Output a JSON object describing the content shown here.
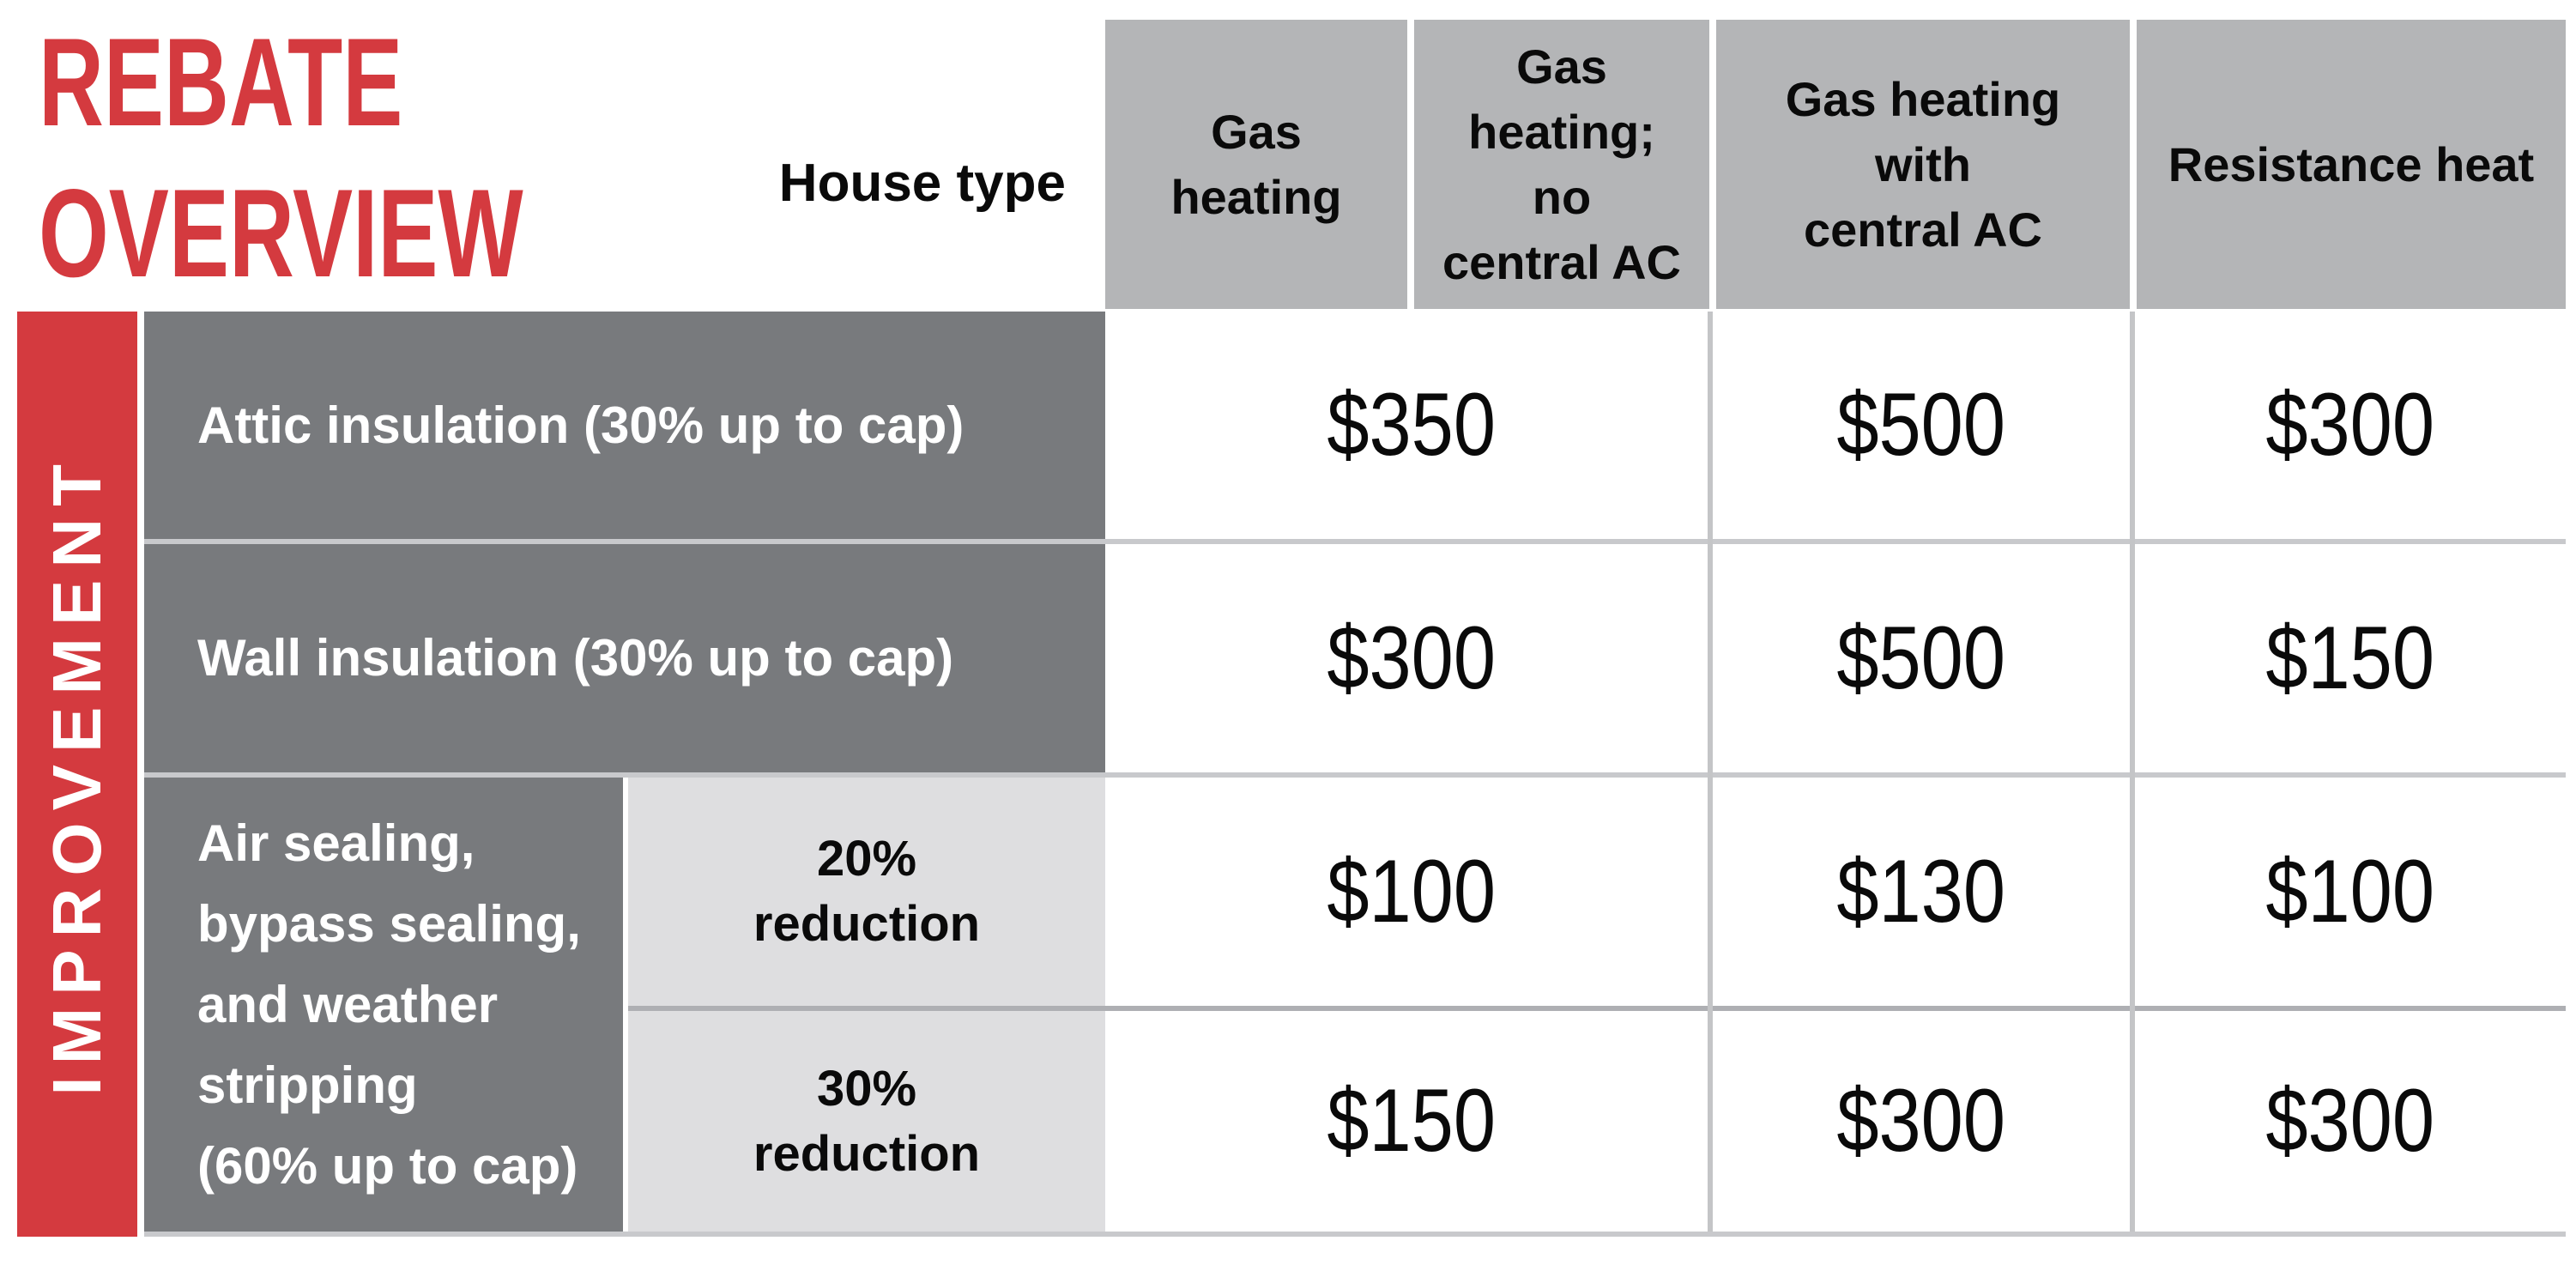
{
  "title": {
    "line1": "REBATE",
    "line2": "OVERVIEW"
  },
  "header": {
    "house_type": "House type",
    "columns": [
      {
        "label": "Gas\nheating"
      },
      {
        "label": "Gas\nheating;\nno\ncentral AC"
      },
      {
        "label": "Gas heating\nwith\ncentral AC"
      },
      {
        "label": "Resistance heat"
      }
    ]
  },
  "sidebar": {
    "label": "IMPROVEMENT"
  },
  "rows": [
    {
      "label": "Attic insulation (30% up to cap)",
      "values": [
        "$350",
        "$500",
        "$300"
      ]
    },
    {
      "label": "Wall insulation (30% up to cap)",
      "values": [
        "$300",
        "$500",
        "$150"
      ]
    },
    {
      "label": "Air sealing,\nbypass sealing,\nand weather\nstripping\n(60% up to cap)",
      "sub_rows": [
        {
          "label": "20%\nreduction",
          "values": [
            "$100",
            "$130",
            "$100"
          ]
        },
        {
          "label": "30%\nreduction",
          "values": [
            "$150",
            "$300",
            "$300"
          ]
        }
      ]
    }
  ],
  "chart_data": {
    "type": "table",
    "title": "REBATE OVERVIEW",
    "column_headers": [
      "Gas heating",
      "Gas heating; no central AC",
      "Gas heating with central AC",
      "Resistance heat"
    ],
    "note": "Gas heating and Gas heating; no central AC share one merged rebate value column",
    "records": [
      {
        "improvement": "Attic insulation (30% up to cap)",
        "gas_heating": "$350",
        "gas_heating_with_central_ac": "$500",
        "resistance_heat": "$300"
      },
      {
        "improvement": "Wall insulation (30% up to cap)",
        "gas_heating": "$300",
        "gas_heating_with_central_ac": "$500",
        "resistance_heat": "$150"
      },
      {
        "improvement": "Air sealing, bypass sealing, and weather stripping (60% up to cap) — 20% reduction",
        "gas_heating": "$100",
        "gas_heating_with_central_ac": "$130",
        "resistance_heat": "$100"
      },
      {
        "improvement": "Air sealing, bypass sealing, and weather stripping (60% up to cap) — 30% reduction",
        "gas_heating": "$150",
        "gas_heating_with_central_ac": "$300",
        "resistance_heat": "$300"
      }
    ]
  },
  "colors": {
    "accent-red": "#d43a3f",
    "header-gray": "#b4b5b7",
    "dark-gray": "#787a7d",
    "light-gray": "#dedee0",
    "line-gray": "#c8c9cc",
    "text-black": "#0a0a0a"
  }
}
